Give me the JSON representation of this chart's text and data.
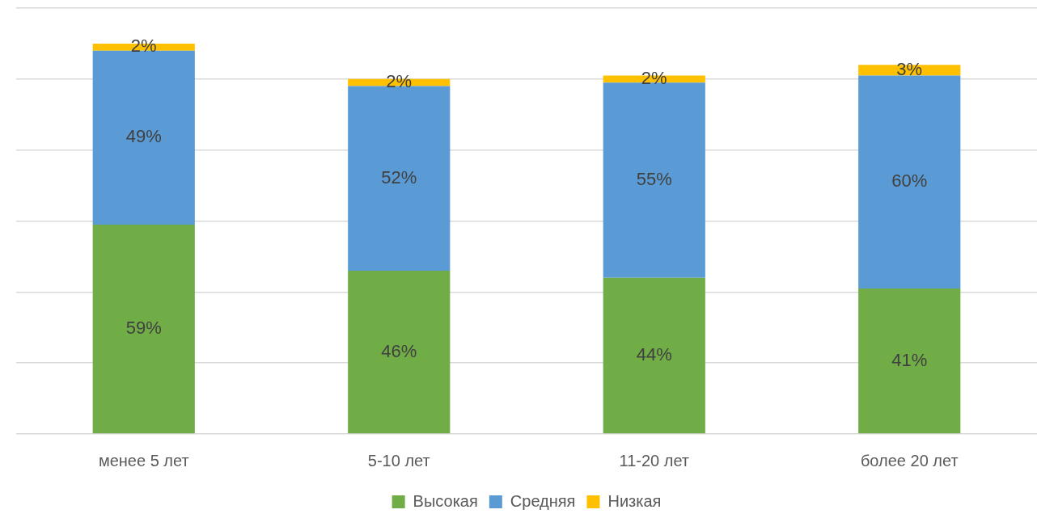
{
  "chart_data": {
    "type": "bar",
    "stacked": true,
    "categories": [
      "менее 5 лет",
      "5-10 лет",
      "11-20 лет",
      "более 20 лет"
    ],
    "series": [
      {
        "name": "Высокая",
        "color": "#70ad47",
        "values": [
          59,
          46,
          44,
          41
        ],
        "value_labels": [
          "59%",
          "46%",
          "44%",
          "41%"
        ]
      },
      {
        "name": "Средняя",
        "color": "#5b9bd5",
        "values": [
          49,
          52,
          55,
          60
        ],
        "value_labels": [
          "49%",
          "52%",
          "55%",
          "60%"
        ]
      },
      {
        "name": "Низкая",
        "color": "#ffc000",
        "values": [
          2,
          2,
          2,
          3
        ],
        "value_labels": [
          "2%",
          "2%",
          "2%",
          "3%"
        ]
      }
    ],
    "tick_labels": "x",
    "grid": "y",
    "legend": "bottom"
  }
}
